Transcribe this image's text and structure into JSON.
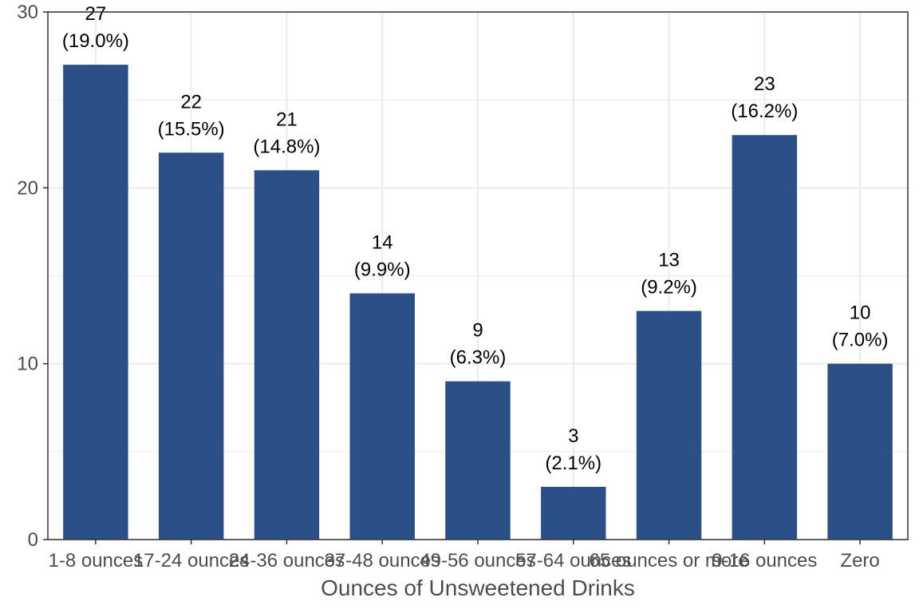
{
  "chart_data": {
    "type": "bar",
    "title": "",
    "xlabel": "Ounces of Unsweetened Drinks",
    "ylabel": "",
    "categories": [
      "1-8 ounces",
      "17-24 ounces",
      "24-36 ounces",
      "37-48 ounces",
      "49-56 ounces",
      "57-64 ounces",
      "65 ounces or more",
      "9-16 ounces",
      "Zero"
    ],
    "values": [
      27,
      22,
      21,
      14,
      9,
      3,
      13,
      23,
      10
    ],
    "count_labels": [
      "27",
      "22",
      "21",
      "14",
      "9",
      "3",
      "13",
      "23",
      "10"
    ],
    "percent_labels": [
      "(19.0%)",
      "(15.5%)",
      "(14.8%)",
      "(9.9%)",
      "(6.3%)",
      "(2.1%)",
      "(9.2%)",
      "(16.2%)",
      "(7.0%)"
    ],
    "ylim": [
      0,
      30
    ],
    "yticks": [
      0,
      10,
      20,
      30
    ],
    "grid": true,
    "legend": "none",
    "colors": {
      "bar": "#2b5088",
      "grid": "#ebebeb",
      "panel_border": "#333333",
      "text": "#4d4d4d"
    }
  }
}
